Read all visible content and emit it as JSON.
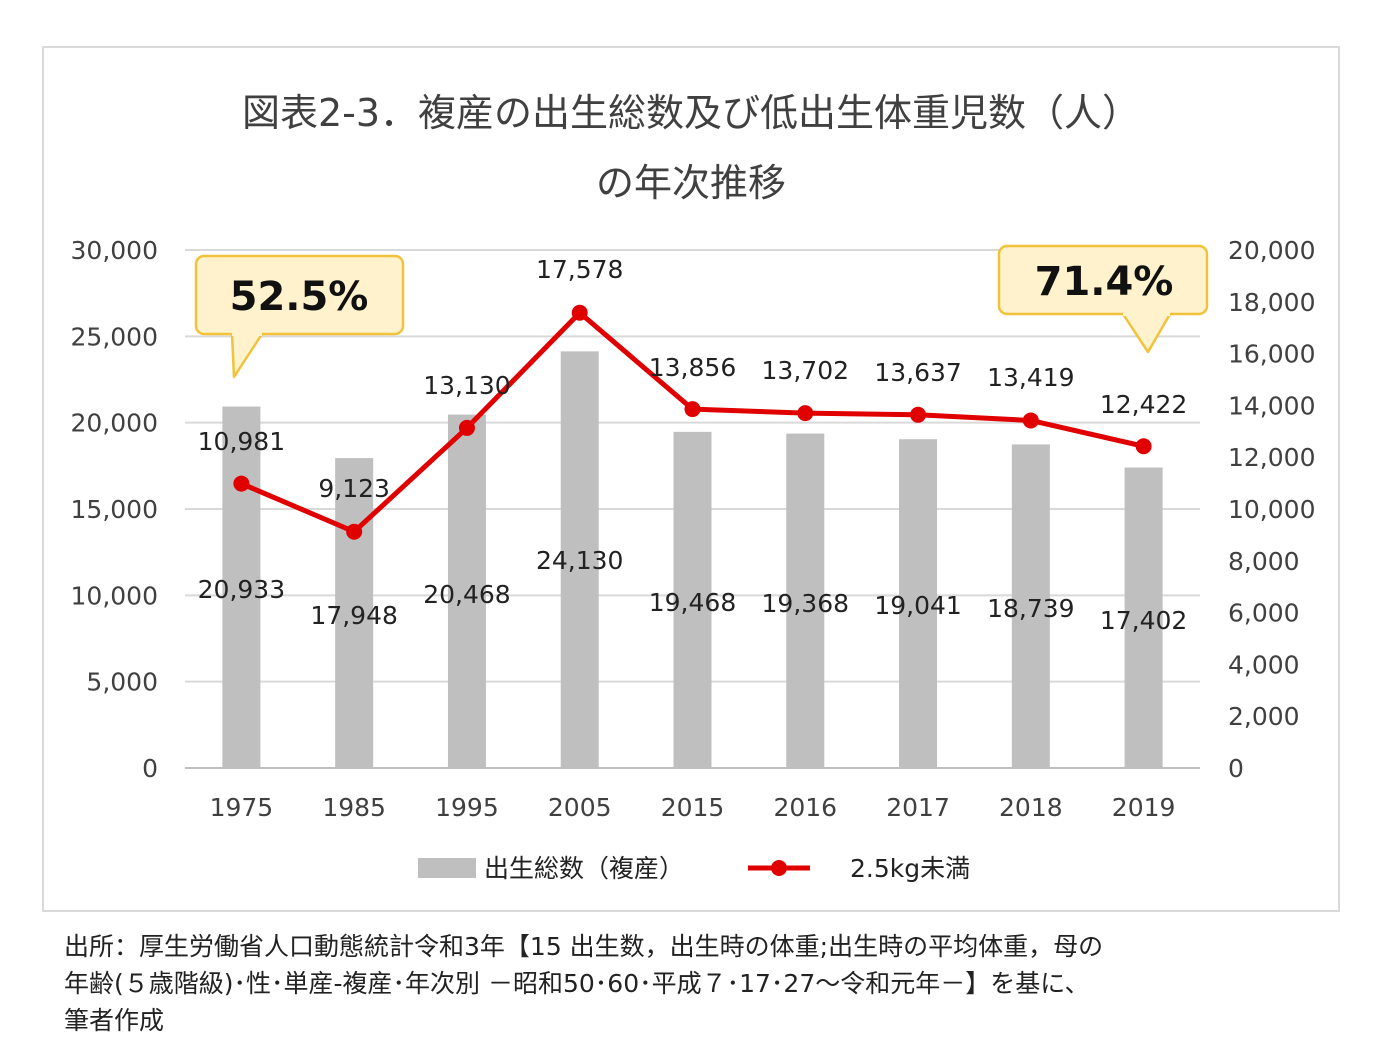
{
  "title": {
    "line1": "図表2-3．複産の出生総数及び低出生体重児数（人）",
    "line2": "の年次推移"
  },
  "source": {
    "line1": "出所：厚生労働省人口動態統計令和3年【15 出生数，出生時の体重;出生時の平均体重，母の",
    "line2": "年齢(５歳階級)･性･単産-複産･年次別 －昭和50･60･平成７･17･27～令和元年－】を基に、",
    "line3": "筆者作成"
  },
  "colors": {
    "bar": "#bfbfbf",
    "line": "#e00000",
    "callout_fill": "#fff2cc",
    "callout_stroke": "#f2c23a",
    "grid": "#d9d9d9"
  },
  "chart_data": {
    "type": "bar",
    "categories": [
      "1975",
      "1985",
      "1995",
      "2005",
      "2015",
      "2016",
      "2017",
      "2018",
      "2019"
    ],
    "series": [
      {
        "name": "出生総数（複産）",
        "type": "bar",
        "axis": "left",
        "values": [
          20933,
          17948,
          20468,
          24130,
          19468,
          19368,
          19041,
          18739,
          17402
        ],
        "labels": [
          "20,933",
          "17,948",
          "20,468",
          "24,130",
          "19,468",
          "19,368",
          "19,041",
          "18,739",
          "17,402"
        ]
      },
      {
        "name": "2.5kg未満",
        "type": "line",
        "axis": "right",
        "values": [
          10981,
          9123,
          13130,
          17578,
          13856,
          13702,
          13637,
          13419,
          12422
        ],
        "labels": [
          "10,981",
          "9,123",
          "13,130",
          "17,578",
          "13,856",
          "13,702",
          "13,637",
          "13,419",
          "12,422"
        ]
      }
    ],
    "y_left": {
      "range": [
        0,
        30000
      ],
      "ticks": [
        "0",
        "5,000",
        "10,000",
        "15,000",
        "20,000",
        "25,000",
        "30,000"
      ]
    },
    "y_right": {
      "range": [
        0,
        20000
      ],
      "ticks": [
        "0",
        "2,000",
        "4,000",
        "6,000",
        "8,000",
        "10,000",
        "12,000",
        "14,000",
        "16,000",
        "18,000",
        "20,000"
      ]
    },
    "grid": true,
    "legend": "bottom",
    "annotations": [
      {
        "text": "52.5%",
        "category": "1975"
      },
      {
        "text": "71.4%",
        "category": "2019"
      }
    ]
  }
}
